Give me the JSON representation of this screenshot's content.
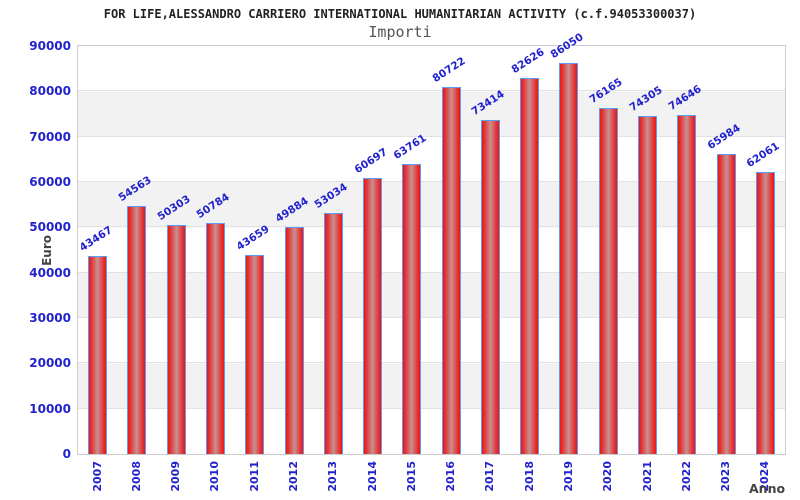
{
  "header": {
    "title": "FOR LIFE,ALESSANDRO CARRIERO INTERNATIONAL HUMANITARIAN ACTIVITY (c.f.94053300037)",
    "subtitle": "Importi"
  },
  "chart_data": {
    "type": "bar",
    "title": "Importi",
    "xlabel": "Anno",
    "ylabel": "Euro",
    "categories": [
      "2007",
      "2008",
      "2009",
      "2010",
      "2011",
      "2012",
      "2013",
      "2014",
      "2015",
      "2016",
      "2017",
      "2018",
      "2019",
      "2020",
      "2021",
      "2022",
      "2023",
      "2024"
    ],
    "values": [
      43467,
      54563,
      50303,
      50784,
      43659,
      49884,
      53034,
      60697,
      63761,
      80722,
      73414,
      82626,
      86050,
      76165,
      74305,
      74646,
      65984,
      62061
    ],
    "ylim": [
      0,
      90000
    ],
    "ytick_step": 10000,
    "grid": "horizontal gridlines every 10000 with alternating white/gray bands",
    "legend": "none",
    "bar_value_labels": "shown above each bar, rotated, blue"
  },
  "colors": {
    "axis_text": "#2222cc",
    "bar_fill_edge": "#ee1313",
    "bar_fill_center": "#c99090",
    "bar_border": "#5b9cf6",
    "band_white": "#ffffff",
    "band_gray": "#f2f2f2",
    "title_text": "#222222",
    "subtitle_text": "#555555",
    "axis_title_text": "#444444"
  }
}
